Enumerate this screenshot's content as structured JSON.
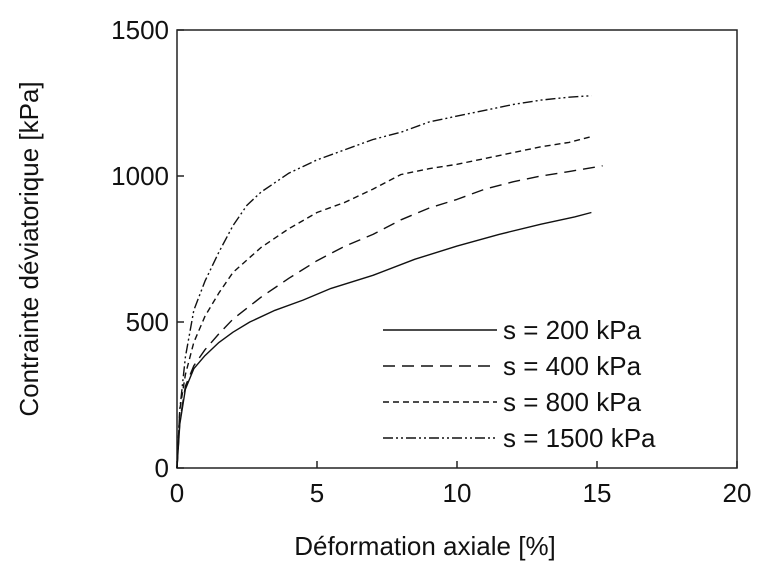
{
  "chart_data": {
    "type": "line",
    "title": "",
    "xlabel": "Déformation axiale [%]",
    "ylabel": "Contrainte déviatorique [kPa]",
    "xlim": [
      0,
      20
    ],
    "ylim": [
      0,
      1500
    ],
    "xticks": [
      0,
      5,
      10,
      15,
      20
    ],
    "yticks": [
      0,
      500,
      1000,
      1500
    ],
    "xtick_labels": [
      "0",
      "5",
      "10",
      "15",
      "20"
    ],
    "ytick_labels": [
      "0",
      "500",
      "1000",
      "1500"
    ],
    "grid": false,
    "legend_position": "bottom-right",
    "series": [
      {
        "name": "s = 200 kPa",
        "dash": "solid",
        "x": [
          0,
          0.1,
          0.3,
          0.6,
          1,
          1.5,
          2,
          2.6,
          3.5,
          4.5,
          5.5,
          7,
          8.5,
          10,
          11.5,
          13,
          14.2,
          14.8
        ],
        "y": [
          0,
          150,
          270,
          340,
          385,
          430,
          465,
          500,
          540,
          575,
          615,
          660,
          715,
          760,
          800,
          835,
          860,
          875
        ]
      },
      {
        "name": "s = 400 kPa",
        "dash": "long-dash",
        "x": [
          0,
          0.1,
          0.3,
          0.6,
          1,
          1.5,
          2,
          3,
          4,
          5,
          6,
          7,
          8,
          9,
          10,
          11,
          12,
          13,
          14,
          15.2
        ],
        "y": [
          0,
          160,
          280,
          350,
          405,
          460,
          510,
          585,
          650,
          710,
          760,
          800,
          850,
          890,
          920,
          955,
          980,
          1000,
          1015,
          1035
        ]
      },
      {
        "name": "s = 800 kPa",
        "dash": "short-dash",
        "x": [
          0,
          0.1,
          0.3,
          0.6,
          1,
          1.5,
          2,
          3,
          4,
          5,
          6,
          7,
          8,
          9,
          10,
          11,
          12,
          13,
          14,
          14.8
        ],
        "y": [
          0,
          200,
          320,
          430,
          520,
          600,
          670,
          755,
          820,
          875,
          910,
          955,
          1005,
          1025,
          1040,
          1060,
          1080,
          1100,
          1115,
          1135
        ]
      },
      {
        "name": "s = 1500 kPa",
        "dash": "dash-dot-dot",
        "x": [
          0,
          0.1,
          0.3,
          0.6,
          1,
          1.5,
          2,
          2.5,
          3,
          4,
          5,
          6,
          7,
          8,
          9,
          10,
          11,
          12,
          13,
          14,
          14.8
        ],
        "y": [
          0,
          200,
          380,
          540,
          640,
          740,
          830,
          900,
          945,
          1010,
          1055,
          1090,
          1125,
          1150,
          1185,
          1205,
          1225,
          1245,
          1260,
          1270,
          1275
        ]
      }
    ]
  }
}
